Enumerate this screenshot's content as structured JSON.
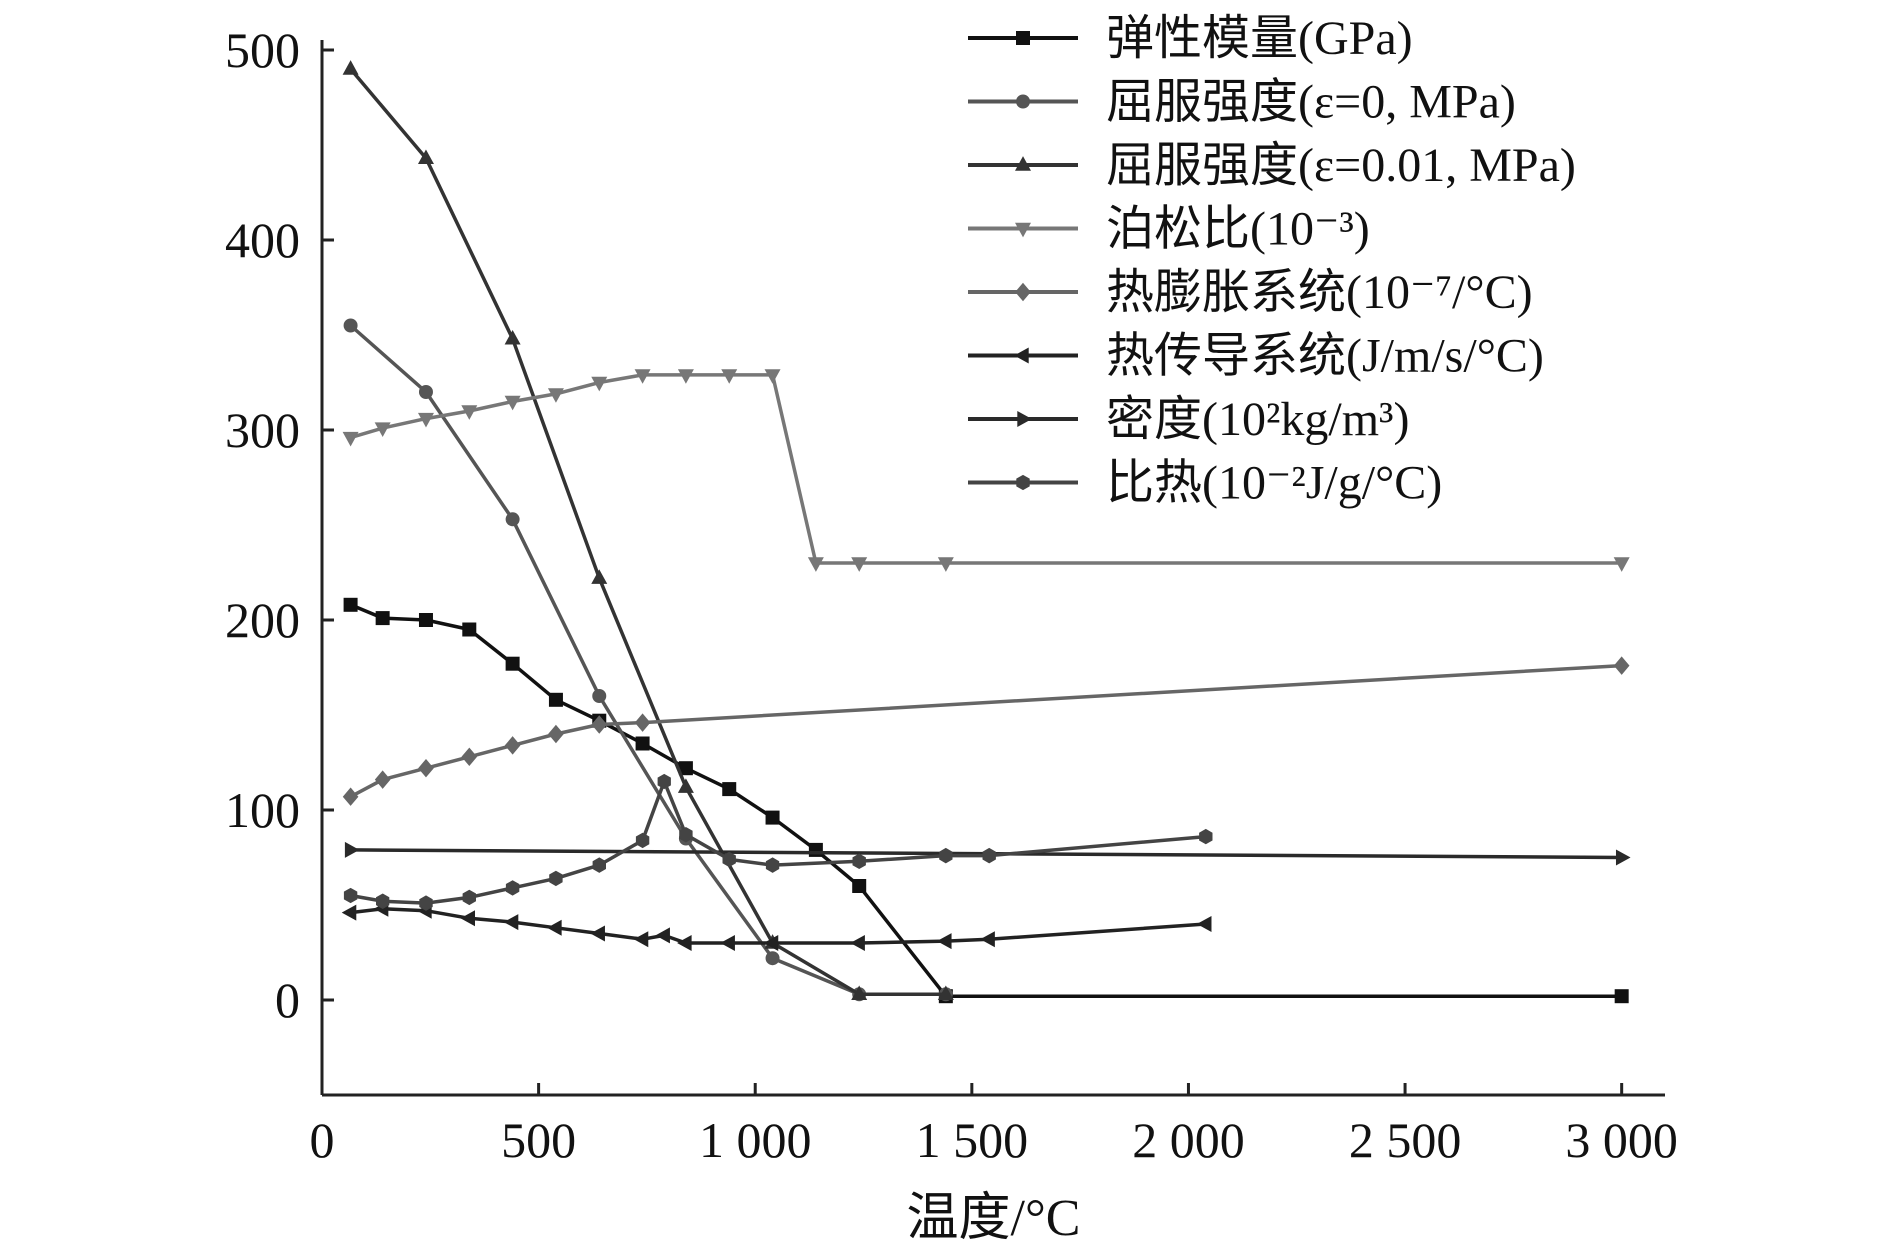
{
  "chart_data": {
    "type": "line",
    "title": "",
    "xlabel": "温度/°C",
    "ylabel": "",
    "xlim": [
      0,
      3100
    ],
    "ylim": [
      -50,
      500
    ],
    "x_ticks": [
      0,
      500,
      1000,
      1500,
      2000,
      2500,
      3000
    ],
    "x_tick_labels": [
      "0",
      "500",
      "1 000",
      "1 500",
      "2 000",
      "2 500",
      "3 000"
    ],
    "y_ticks": [
      0,
      100,
      200,
      300,
      400,
      500
    ],
    "y_tick_labels": [
      "0",
      "100",
      "200",
      "300",
      "400",
      "500"
    ],
    "legend_position": "top-right",
    "series": [
      {
        "name": "弹性模量(GPa)",
        "marker": "square",
        "color": "#111111",
        "x": [
          66,
          140,
          240,
          340,
          440,
          540,
          640,
          740,
          840,
          940,
          1040,
          1140,
          1240,
          1440,
          3000
        ],
        "y": [
          208,
          201,
          200,
          195,
          177,
          158,
          147,
          135,
          122,
          111,
          96,
          79,
          60,
          2,
          2
        ]
      },
      {
        "name": "屈服强度(ε=0, MPa)",
        "marker": "circle",
        "color": "#555555",
        "x": [
          66,
          240,
          440,
          640,
          840,
          1040,
          1240,
          1440
        ],
        "y": [
          355,
          320,
          253,
          160,
          85,
          22,
          3,
          3
        ]
      },
      {
        "name": "屈服强度(ε=0.01, MPa)",
        "marker": "triangle-up",
        "color": "#333333",
        "x": [
          66,
          240,
          440,
          640,
          840,
          1040,
          1240,
          1440
        ],
        "y": [
          490,
          443,
          348,
          222,
          112,
          30,
          3,
          3
        ]
      },
      {
        "name": "泊松比(10⁻³)",
        "marker": "triangle-down",
        "color": "#777777",
        "x": [
          66,
          140,
          240,
          340,
          440,
          540,
          640,
          740,
          840,
          940,
          1040,
          1140,
          1240,
          1440,
          3000
        ],
        "y": [
          296,
          301,
          306,
          310,
          315,
          319,
          325,
          329,
          329,
          329,
          329,
          230,
          230,
          230,
          230
        ]
      },
      {
        "name": "热膨胀系统(10⁻⁷/°C)",
        "marker": "diamond",
        "color": "#666666",
        "x": [
          66,
          140,
          240,
          340,
          440,
          540,
          640,
          740,
          3000
        ],
        "y": [
          107,
          116,
          122,
          128,
          134,
          140,
          145,
          146,
          176
        ]
      },
      {
        "name": "热传导系统(J/m/s/°C)",
        "marker": "left-triangle",
        "color": "#222222",
        "x": [
          66,
          140,
          240,
          340,
          440,
          540,
          640,
          740,
          790,
          840,
          940,
          1040,
          1240,
          1440,
          1540,
          2040
        ],
        "y": [
          46,
          48,
          47,
          43,
          41,
          38,
          35,
          32,
          34,
          30,
          30,
          30,
          30,
          31,
          32,
          40
        ]
      },
      {
        "name": "密度(10²kg/m³)",
        "marker": "right-triangle",
        "color": "#2a2a2a",
        "x": [
          66,
          3000
        ],
        "y": [
          79,
          75
        ]
      },
      {
        "name": "比热(10⁻²J/g/°C)",
        "marker": "hexagon",
        "color": "#444444",
        "x": [
          66,
          140,
          240,
          340,
          440,
          540,
          640,
          740,
          790,
          840,
          940,
          1040,
          1240,
          1440,
          1540,
          2040
        ],
        "y": [
          55,
          52,
          51,
          54,
          59,
          64,
          71,
          84,
          115,
          87,
          74,
          71,
          73,
          76,
          76,
          86
        ]
      }
    ]
  }
}
